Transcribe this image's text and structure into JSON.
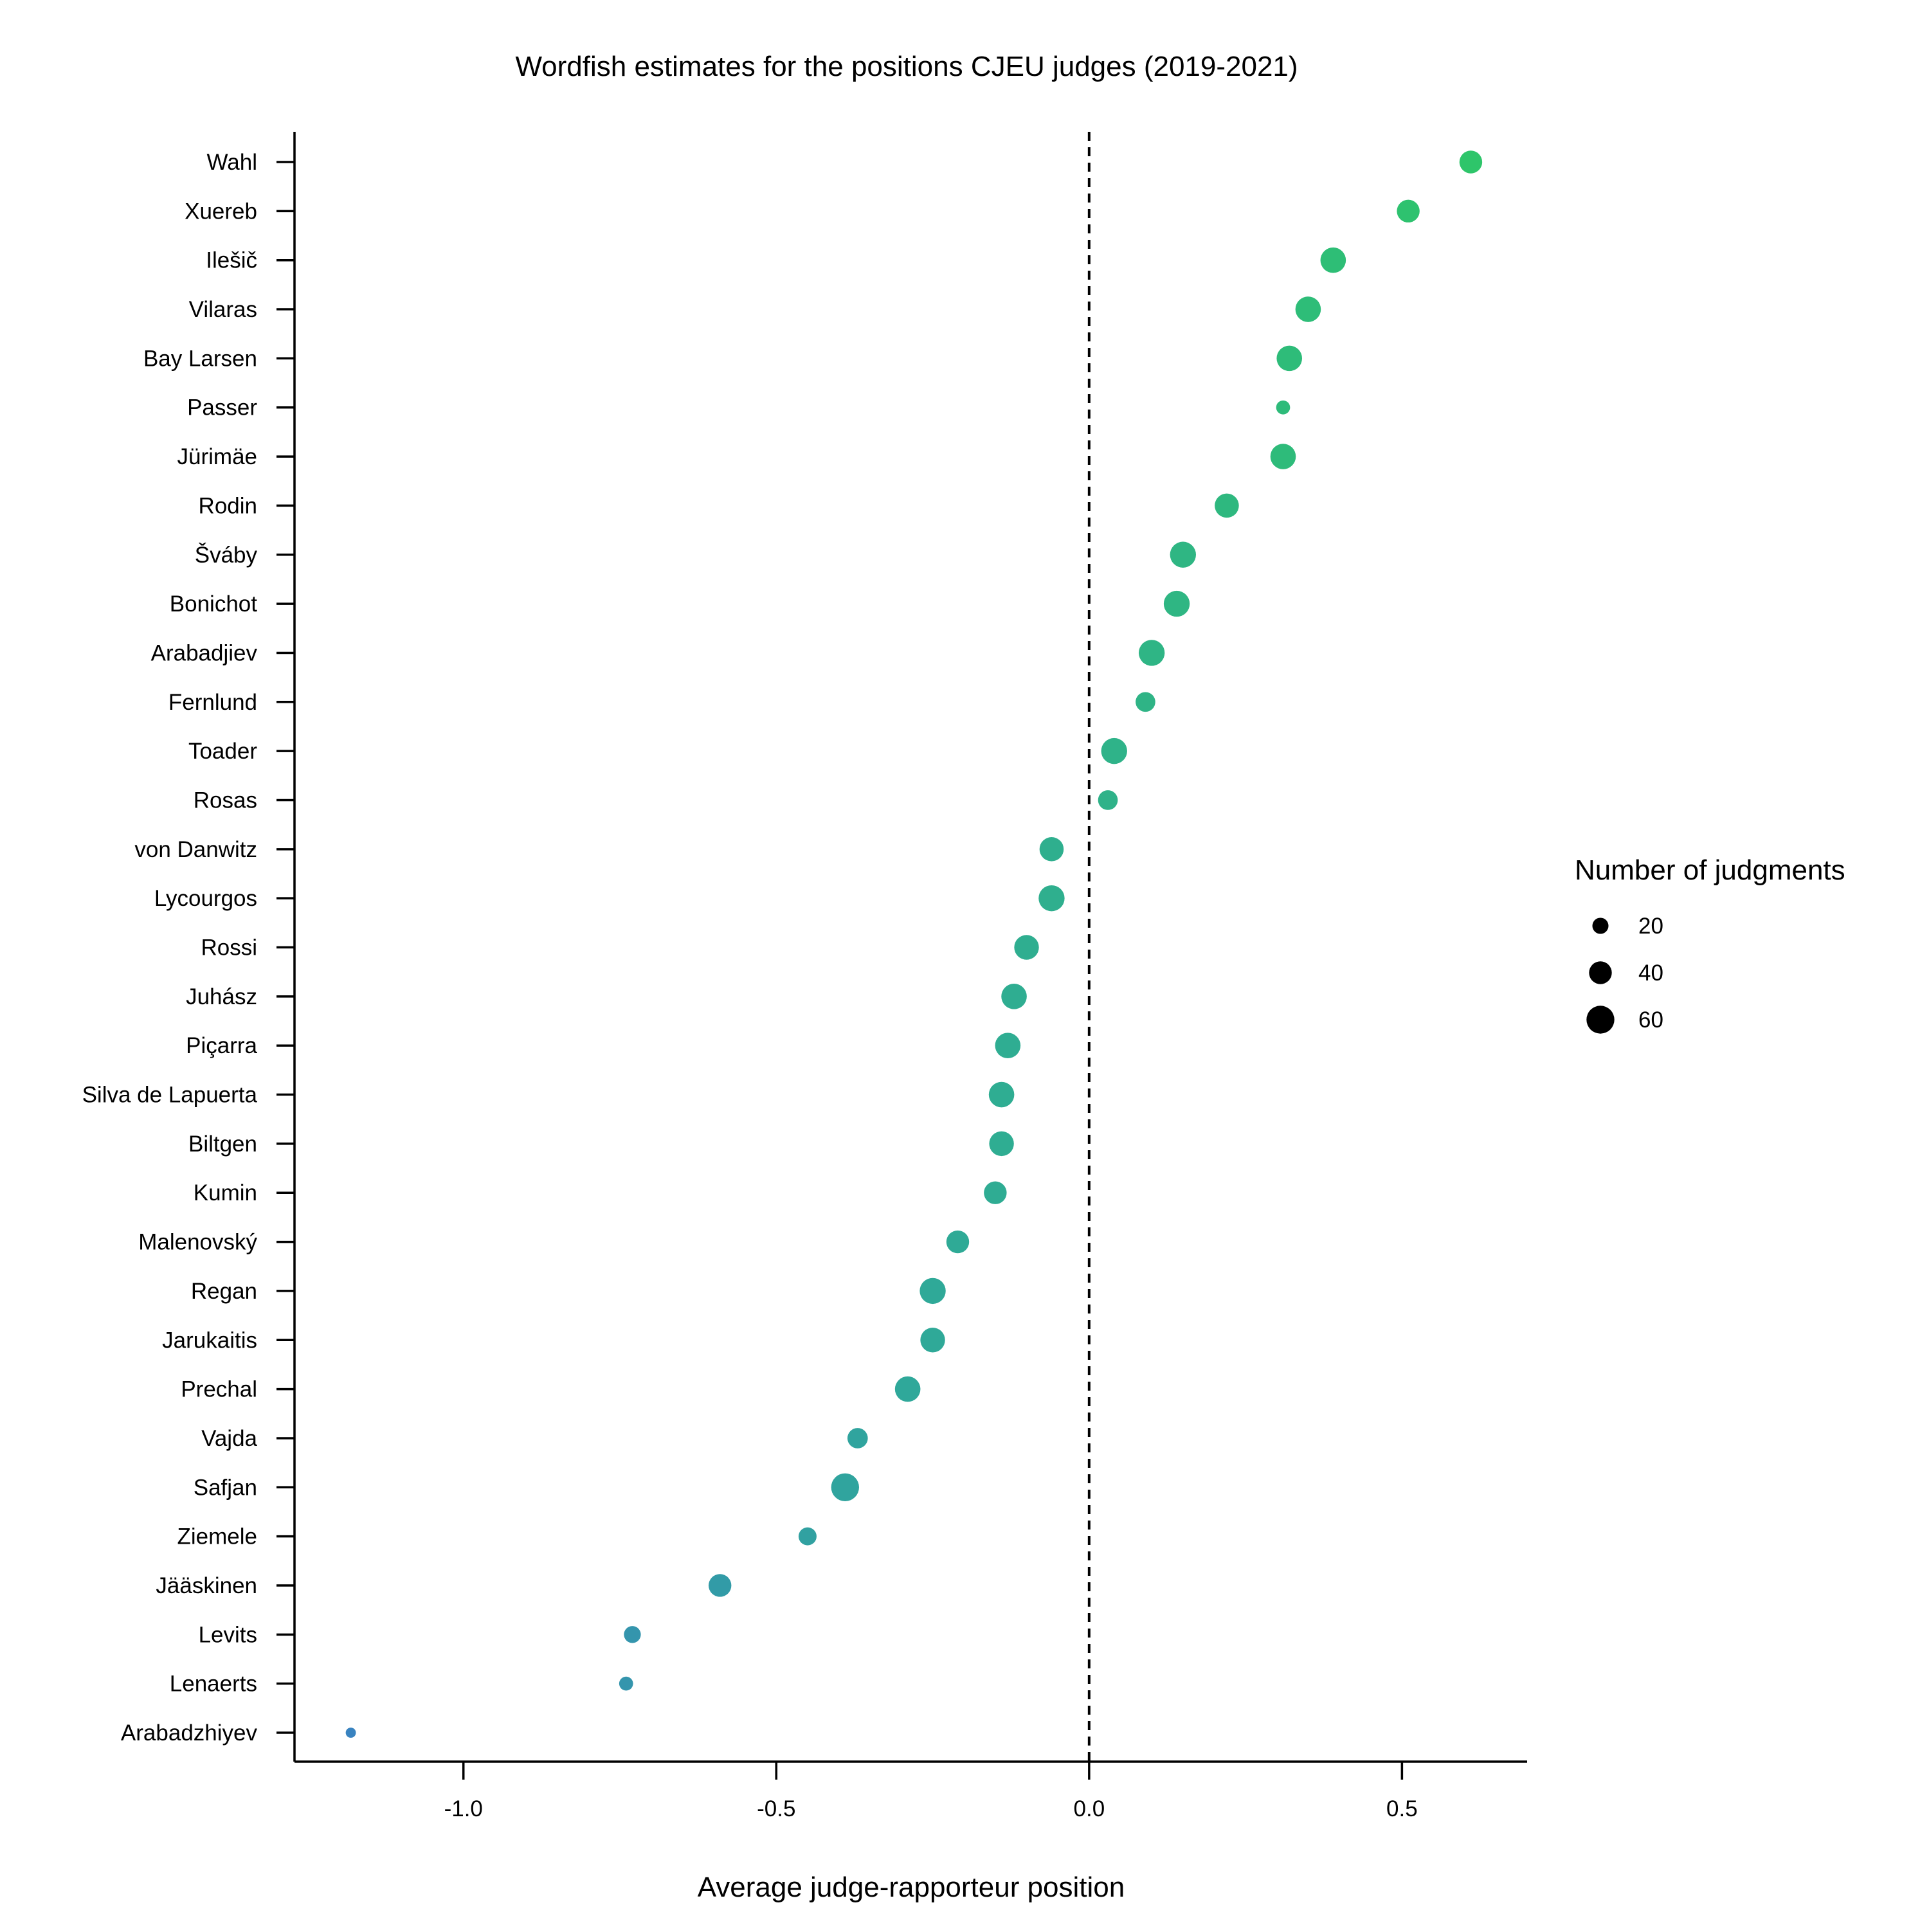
{
  "chart_data": {
    "type": "scatter",
    "title": "Wordfish estimates for the positions CJEU judges (2019-2021)",
    "xlabel": "Average judge-rapporteur position",
    "ylabel": "",
    "xlim": [
      -1.27,
      0.7
    ],
    "xticks": [
      -1.0,
      -0.5,
      0.0,
      0.5
    ],
    "xtick_labels": [
      "-1.0",
      "-0.5",
      "0.0",
      "0.5"
    ],
    "reference_line": {
      "x": 0.0,
      "style": "dashed"
    },
    "color_scale": {
      "low": "#3a7fc4",
      "mid": "#2fa89a",
      "high": "#2ec865"
    },
    "grid": false,
    "legend": {
      "title": "Number of judgments",
      "placement": "right",
      "entries": [
        {
          "label": "20",
          "value": 20
        },
        {
          "label": "40",
          "value": 40
        },
        {
          "label": "60",
          "value": 60
        }
      ]
    },
    "points": [
      {
        "judge": "Wahl",
        "x": 0.61,
        "n": 40
      },
      {
        "judge": "Xuereb",
        "x": 0.51,
        "n": 40
      },
      {
        "judge": "Ilešič",
        "x": 0.39,
        "n": 50
      },
      {
        "judge": "Vilaras",
        "x": 0.35,
        "n": 50
      },
      {
        "judge": "Bay Larsen",
        "x": 0.32,
        "n": 50
      },
      {
        "judge": "Passer",
        "x": 0.31,
        "n": 15
      },
      {
        "judge": "Jürimäe",
        "x": 0.31,
        "n": 50
      },
      {
        "judge": "Rodin",
        "x": 0.22,
        "n": 45
      },
      {
        "judge": "Šváby",
        "x": 0.15,
        "n": 52
      },
      {
        "judge": "Bonichot",
        "x": 0.14,
        "n": 52
      },
      {
        "judge": "Arabadjiev",
        "x": 0.1,
        "n": 52
      },
      {
        "judge": "Fernlund",
        "x": 0.09,
        "n": 30
      },
      {
        "judge": "Toader",
        "x": 0.04,
        "n": 52
      },
      {
        "judge": "Rosas",
        "x": 0.03,
        "n": 30
      },
      {
        "judge": "von Danwitz",
        "x": -0.06,
        "n": 45
      },
      {
        "judge": "Lycourgos",
        "x": -0.06,
        "n": 52
      },
      {
        "judge": "Rossi",
        "x": -0.1,
        "n": 47
      },
      {
        "judge": "Juhász",
        "x": -0.12,
        "n": 50
      },
      {
        "judge": "Piçarra",
        "x": -0.13,
        "n": 50
      },
      {
        "judge": "Silva de Lapuerta",
        "x": -0.14,
        "n": 50
      },
      {
        "judge": "Biltgen",
        "x": -0.14,
        "n": 47
      },
      {
        "judge": "Kumin",
        "x": -0.15,
        "n": 40
      },
      {
        "judge": "Malenovský",
        "x": -0.21,
        "n": 40
      },
      {
        "judge": "Regan",
        "x": -0.25,
        "n": 52
      },
      {
        "judge": "Jarukaitis",
        "x": -0.25,
        "n": 47
      },
      {
        "judge": "Prechal",
        "x": -0.29,
        "n": 50
      },
      {
        "judge": "Vajda",
        "x": -0.37,
        "n": 32
      },
      {
        "judge": "Safjan",
        "x": -0.39,
        "n": 60
      },
      {
        "judge": "Ziemele",
        "x": -0.45,
        "n": 25
      },
      {
        "judge": "Jääskinen",
        "x": -0.59,
        "n": 40
      },
      {
        "judge": "Levits",
        "x": -0.73,
        "n": 22
      },
      {
        "judge": "Lenaerts",
        "x": -0.74,
        "n": 15
      },
      {
        "judge": "Arabadzhiyev",
        "x": -1.18,
        "n": 8
      }
    ]
  }
}
